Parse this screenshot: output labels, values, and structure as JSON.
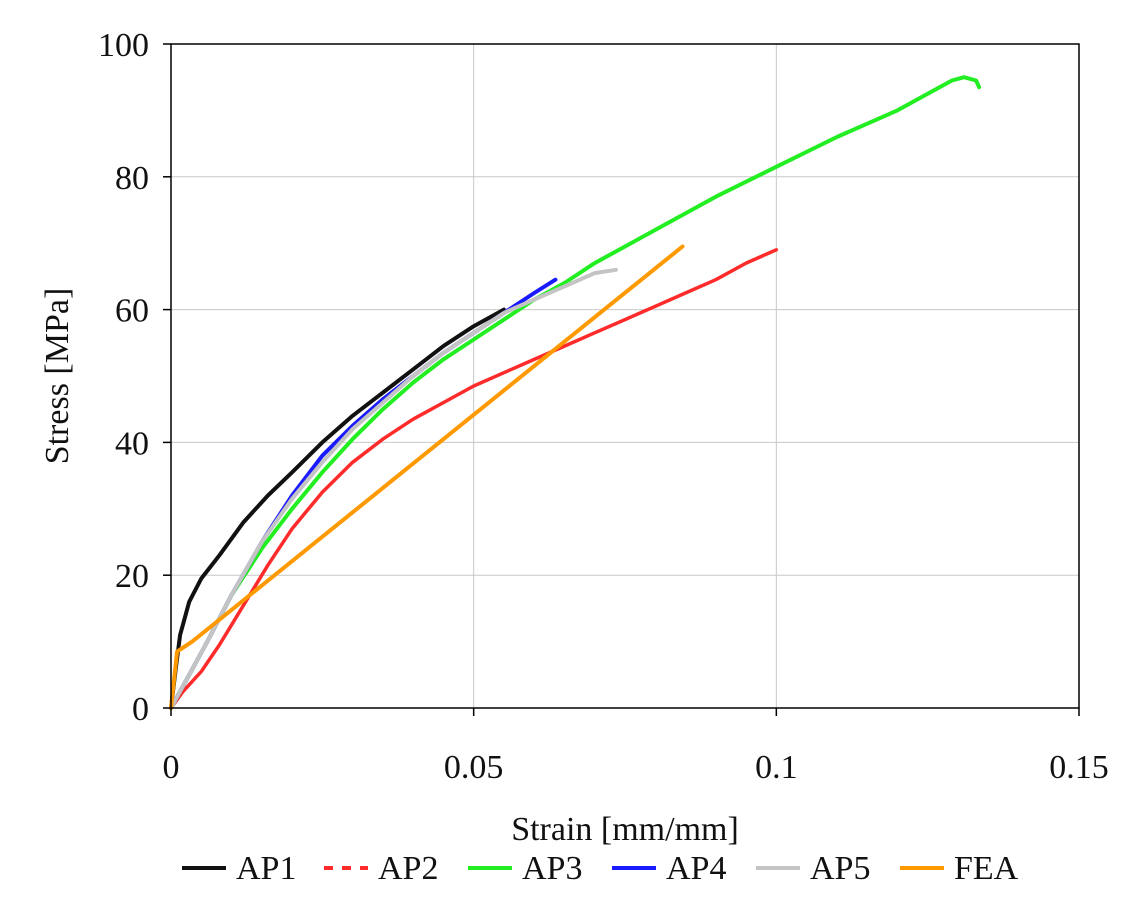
{
  "chart_data": {
    "type": "line",
    "title": "",
    "xlabel": "Strain [mm/mm]",
    "ylabel": "Stress [MPa]",
    "xlim": [
      0,
      0.15
    ],
    "ylim": [
      0,
      100
    ],
    "xticks": [
      0,
      0.05,
      0.1,
      0.15
    ],
    "xtick_labels": [
      "0",
      "0.05",
      "0.1",
      "0.15"
    ],
    "yticks": [
      0,
      20,
      40,
      60,
      80,
      100
    ],
    "ytick_labels": [
      "0",
      "20",
      "40",
      "60",
      "80",
      "100"
    ],
    "grid": true,
    "legend_position": "bottom",
    "series": [
      {
        "name": "AP1",
        "color": "#111111",
        "dash": "solid",
        "points": [
          [
            0,
            0
          ],
          [
            0.0008,
            6
          ],
          [
            0.0015,
            11
          ],
          [
            0.003,
            16
          ],
          [
            0.005,
            19.5
          ],
          [
            0.008,
            23
          ],
          [
            0.012,
            28
          ],
          [
            0.016,
            32
          ],
          [
            0.02,
            35.5
          ],
          [
            0.025,
            40
          ],
          [
            0.03,
            44
          ],
          [
            0.035,
            47.5
          ],
          [
            0.04,
            51
          ],
          [
            0.045,
            54.5
          ],
          [
            0.05,
            57.5
          ],
          [
            0.055,
            60
          ]
        ]
      },
      {
        "name": "AP2",
        "color": "#ff2a2a",
        "dash": "dashed",
        "points": [
          [
            0,
            0
          ],
          [
            0.002,
            2.5
          ],
          [
            0.005,
            5.5
          ],
          [
            0.008,
            9.5
          ],
          [
            0.012,
            15.5
          ],
          [
            0.016,
            21.5
          ],
          [
            0.02,
            27
          ],
          [
            0.025,
            32.5
          ],
          [
            0.03,
            37
          ],
          [
            0.035,
            40.5
          ],
          [
            0.04,
            43.5
          ],
          [
            0.045,
            46
          ],
          [
            0.05,
            48.5
          ],
          [
            0.055,
            50.5
          ],
          [
            0.06,
            52.5
          ],
          [
            0.065,
            54.5
          ],
          [
            0.07,
            56.5
          ],
          [
            0.075,
            58.5
          ],
          [
            0.08,
            60.5
          ],
          [
            0.085,
            62.5
          ],
          [
            0.09,
            64.5
          ],
          [
            0.095,
            67
          ],
          [
            0.1,
            69
          ]
        ]
      },
      {
        "name": "AP3",
        "color": "#22ee22",
        "dash": "solid",
        "points": [
          [
            0,
            0
          ],
          [
            0.003,
            5
          ],
          [
            0.006,
            10
          ],
          [
            0.01,
            17
          ],
          [
            0.015,
            24
          ],
          [
            0.02,
            30
          ],
          [
            0.025,
            35.5
          ],
          [
            0.03,
            40.5
          ],
          [
            0.035,
            45
          ],
          [
            0.04,
            49
          ],
          [
            0.045,
            52.5
          ],
          [
            0.05,
            55.5
          ],
          [
            0.055,
            58.5
          ],
          [
            0.06,
            61.5
          ],
          [
            0.065,
            64
          ],
          [
            0.07,
            67
          ],
          [
            0.08,
            72
          ],
          [
            0.09,
            77
          ],
          [
            0.1,
            81.5
          ],
          [
            0.11,
            86
          ],
          [
            0.12,
            90
          ],
          [
            0.125,
            92.5
          ],
          [
            0.129,
            94.5
          ],
          [
            0.131,
            95
          ],
          [
            0.133,
            94.5
          ],
          [
            0.1335,
            93.5
          ]
        ]
      },
      {
        "name": "AP4",
        "color": "#1a1aff",
        "dash": "solid",
        "points": [
          [
            0,
            0
          ],
          [
            0.003,
            5
          ],
          [
            0.006,
            10
          ],
          [
            0.01,
            17
          ],
          [
            0.015,
            25
          ],
          [
            0.02,
            32
          ],
          [
            0.025,
            38
          ],
          [
            0.03,
            42.5
          ],
          [
            0.035,
            46.5
          ],
          [
            0.04,
            50
          ],
          [
            0.045,
            53.5
          ],
          [
            0.05,
            56.5
          ],
          [
            0.055,
            59.5
          ],
          [
            0.06,
            62.5
          ],
          [
            0.0635,
            64.5
          ]
        ]
      },
      {
        "name": "AP5",
        "color": "#c4c4c4",
        "dash": "solid",
        "points": [
          [
            0,
            0
          ],
          [
            0.003,
            5
          ],
          [
            0.006,
            10
          ],
          [
            0.01,
            17
          ],
          [
            0.015,
            25
          ],
          [
            0.02,
            31.5
          ],
          [
            0.025,
            37
          ],
          [
            0.03,
            42
          ],
          [
            0.035,
            46
          ],
          [
            0.04,
            50
          ],
          [
            0.045,
            53.5
          ],
          [
            0.05,
            56.5
          ],
          [
            0.055,
            59.5
          ],
          [
            0.06,
            61.5
          ],
          [
            0.065,
            63.5
          ],
          [
            0.07,
            65.5
          ],
          [
            0.0735,
            66
          ]
        ]
      },
      {
        "name": "FEA",
        "color": "#ff9900",
        "dash": "solid",
        "points": [
          [
            0,
            0
          ],
          [
            0.001,
            8.5
          ],
          [
            0.0035,
            10
          ],
          [
            0.0845,
            69.5
          ]
        ]
      }
    ]
  }
}
